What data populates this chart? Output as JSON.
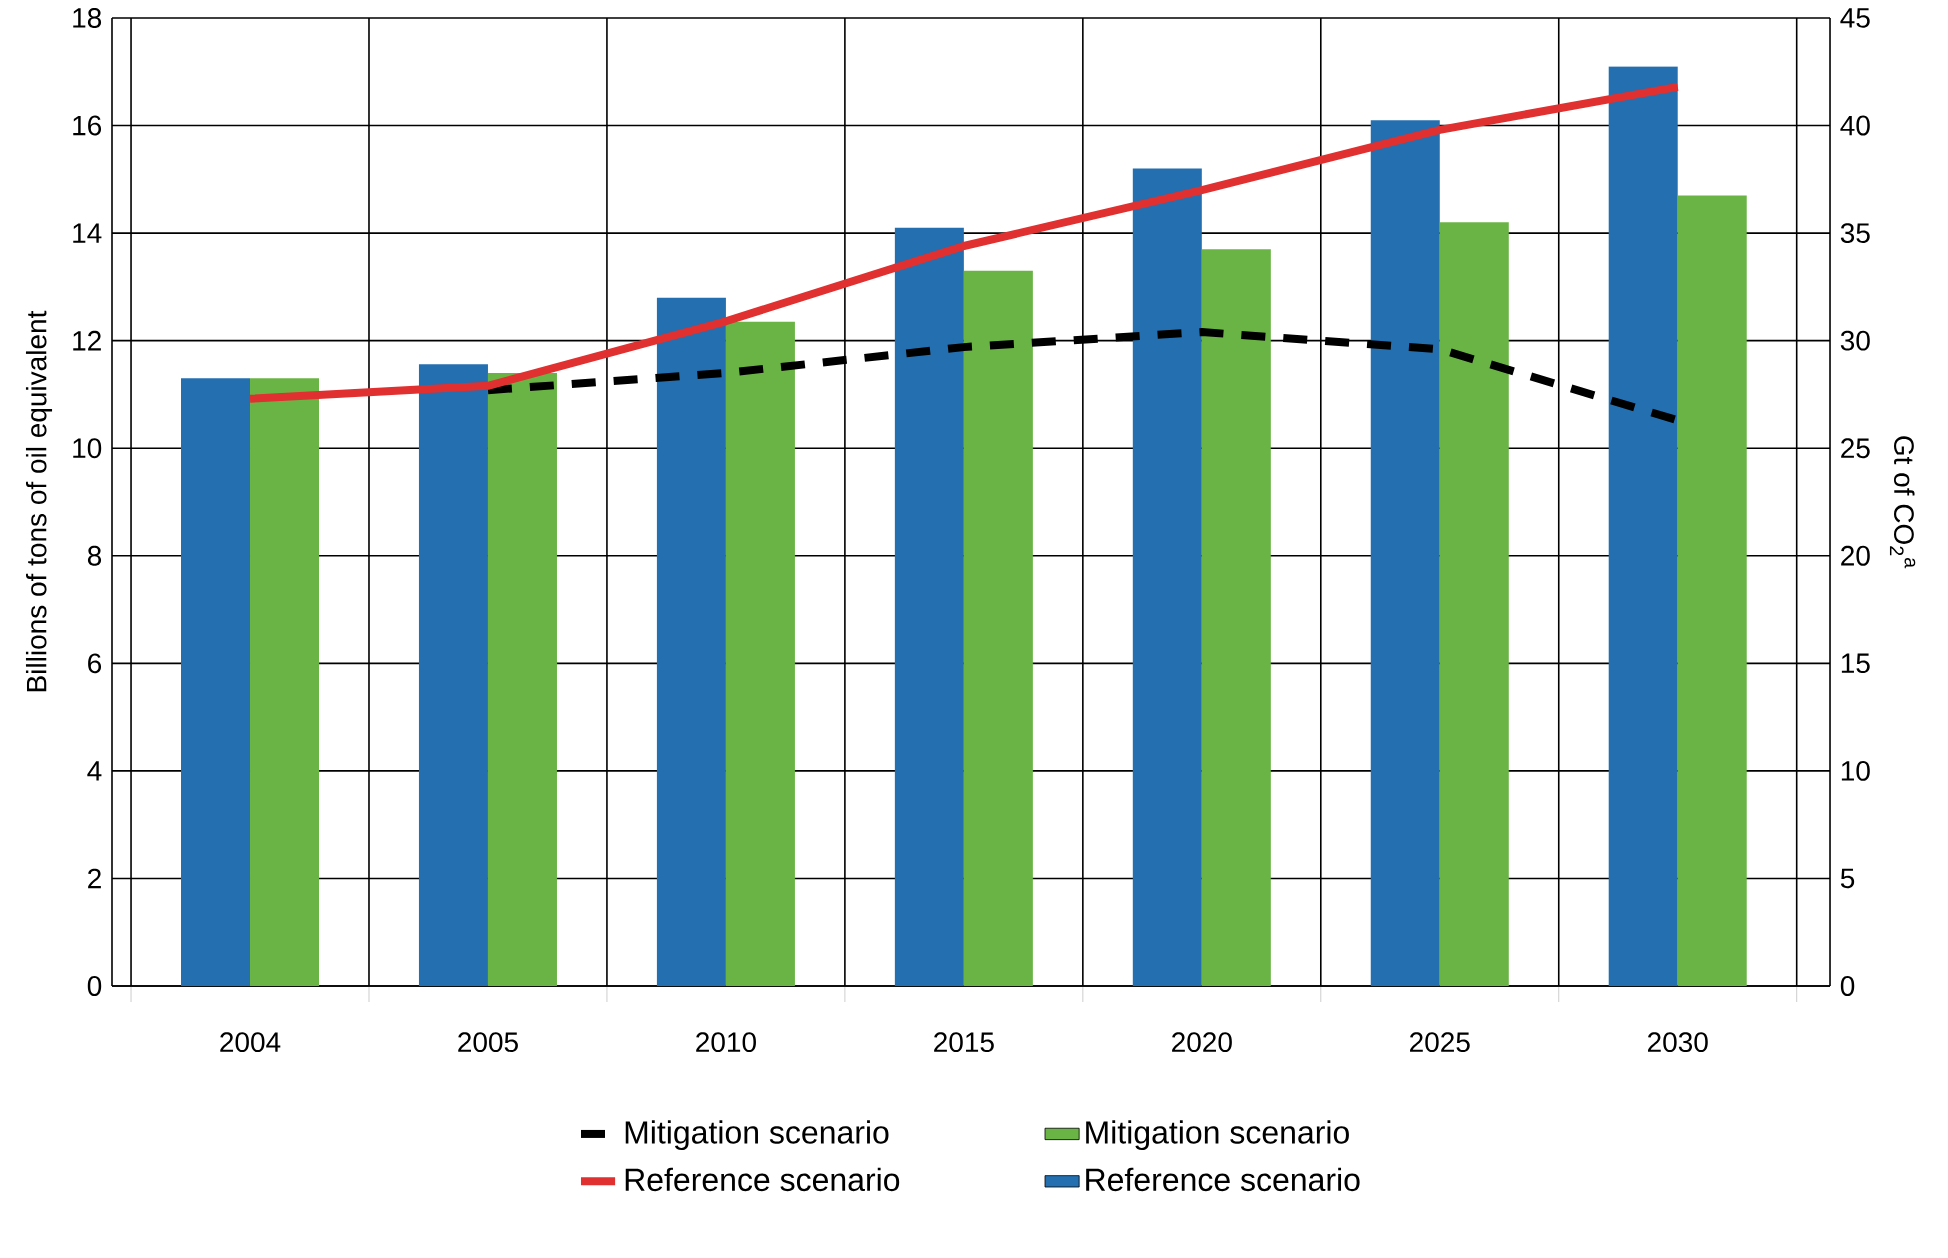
{
  "chart_data": {
    "type": "bar",
    "categories": [
      "2004",
      "2005",
      "2010",
      "2015",
      "2020",
      "2025",
      "2030"
    ],
    "ylabel": "Billions of tons of oil equivalent",
    "y2label": "Gt of CO$_{2}$$^{a}$",
    "ylim": [
      0,
      18
    ],
    "yticks": [
      0,
      2,
      4,
      6,
      8,
      10,
      12,
      14,
      16,
      18
    ],
    "y2lim": [
      0,
      45
    ],
    "y2ticks": [
      0,
      5,
      10,
      15,
      20,
      25,
      30,
      35,
      40,
      45
    ],
    "grid": true,
    "legend": "bottom",
    "series": [
      {
        "name": "Mitigation scenario",
        "type": "line",
        "axis": "y2",
        "color": "#000000",
        "line_style": "dashed",
        "values": [
          null,
          27.7,
          28.5,
          29.7,
          30.4,
          29.6,
          26.3
        ]
      },
      {
        "name": "Reference scenario",
        "type": "line",
        "axis": "y2",
        "color": "#e03030",
        "line_style": "solid",
        "values": [
          27.3,
          27.9,
          30.9,
          34.4,
          37.0,
          39.8,
          41.8
        ]
      },
      {
        "name": "Mitigation scenario",
        "type": "bar",
        "color": "#6ab446",
        "values": [
          11.3,
          11.4,
          12.35,
          13.3,
          13.7,
          14.2,
          14.7
        ]
      },
      {
        "name": "Reference scenario",
        "type": "bar",
        "color": "#236fb0",
        "values": [
          11.3,
          11.56,
          12.8,
          14.1,
          15.2,
          16.1,
          17.1
        ]
      }
    ]
  }
}
